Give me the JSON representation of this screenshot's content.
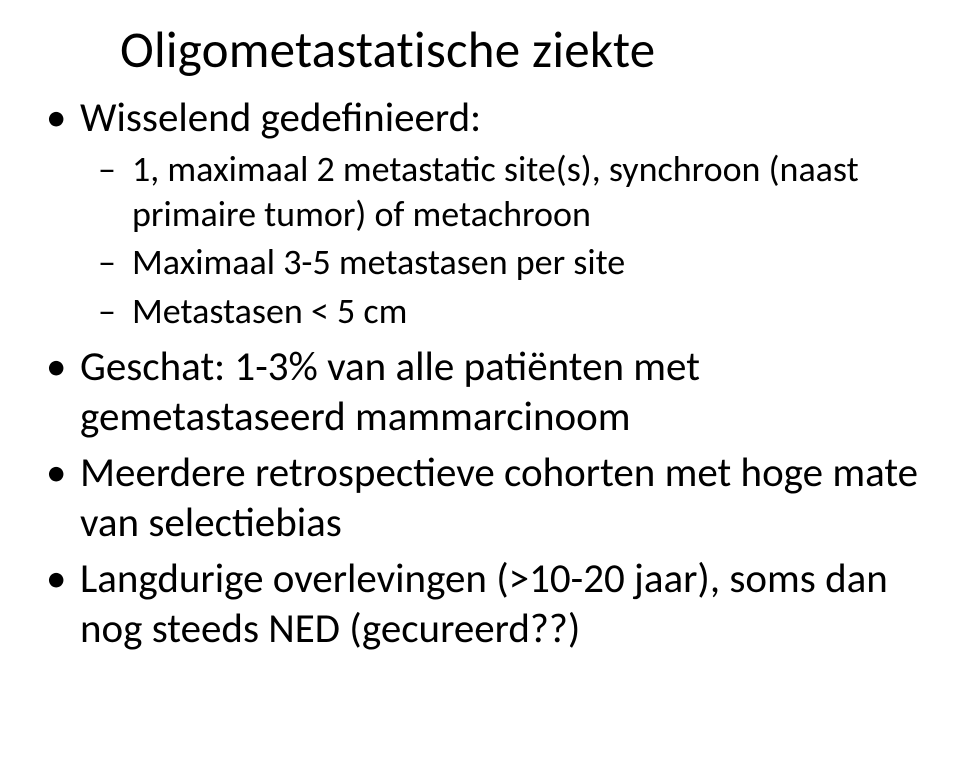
{
  "title": "Oligometastatische ziekte",
  "bullets": [
    {
      "text": "Wisselend gedefinieerd:",
      "sub": [
        "1, maximaal 2 metastatic site(s), synchroon (naast primaire tumor) of metachroon",
        "Maximaal 3-5 metastasen per site",
        "Metastasen < 5 cm"
      ]
    },
    {
      "text": "Geschat: 1-3% van alle patiënten met gemetastaseerd mammarcinoom"
    },
    {
      "text": "Meerdere retrospectieve cohorten met hoge mate van selectiebias"
    },
    {
      "text": "Langdurige overlevingen (>10-20 jaar), soms dan nog steeds NED (gecureerd??)"
    }
  ]
}
